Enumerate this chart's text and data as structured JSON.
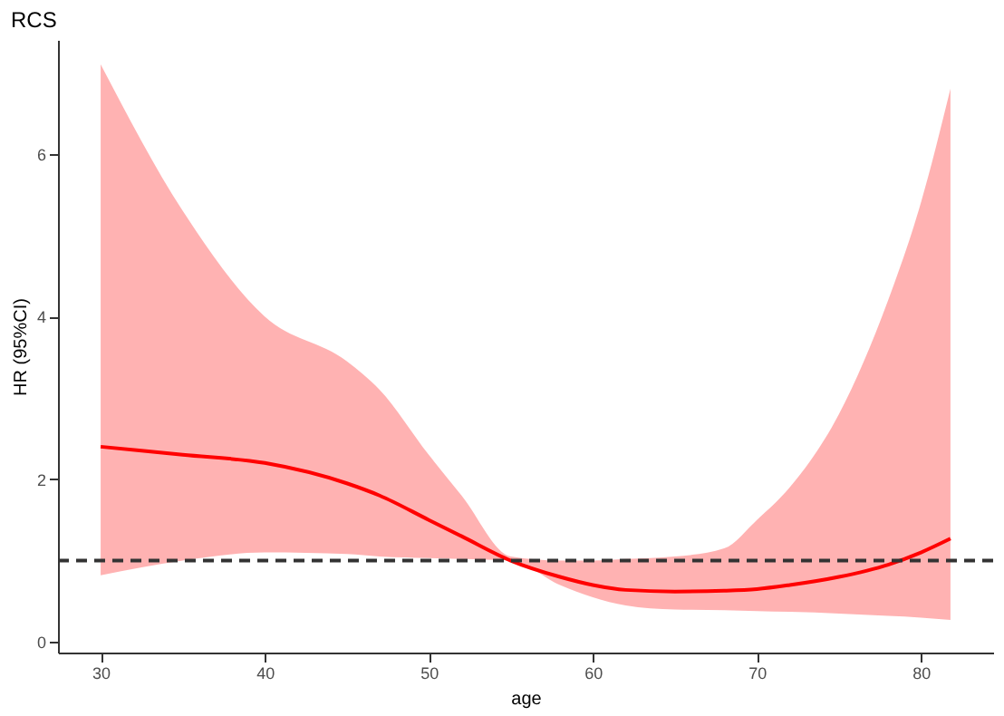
{
  "chart_data": {
    "type": "line",
    "title": "RCS",
    "xlabel": "age",
    "ylabel": "HR (95%CI)",
    "x": [
      30,
      35,
      40,
      45,
      47,
      50,
      52,
      55,
      58,
      60,
      62,
      65,
      68,
      70,
      72,
      75,
      78,
      80,
      81.8
    ],
    "series": [
      {
        "color": "#ff0000",
        "values": [
          2.4,
          2.3,
          2.2,
          1.95,
          1.8,
          1.5,
          1.3,
          1.0,
          0.8,
          0.7,
          0.64,
          0.62,
          0.63,
          0.65,
          0.7,
          0.8,
          0.95,
          1.1,
          1.27
        ],
        "lower": [
          0.82,
          1.0,
          1.1,
          1.08,
          1.05,
          1.03,
          1.02,
          1.0,
          0.7,
          0.55,
          0.45,
          0.4,
          0.39,
          0.38,
          0.37,
          0.35,
          0.32,
          0.3,
          0.27
        ],
        "upper": [
          7.1,
          5.3,
          4.0,
          3.45,
          3.1,
          2.3,
          1.8,
          1.05,
          1.0,
          1.0,
          1.02,
          1.05,
          1.15,
          1.5,
          1.9,
          2.8,
          4.2,
          5.4,
          6.8
        ]
      }
    ],
    "xlim": [
      27.4,
      84.4
    ],
    "xticks": [
      30,
      40,
      50,
      60,
      70,
      80
    ],
    "ylim": [
      -0.13,
      7.4
    ],
    "yticks": [
      0,
      2,
      4,
      6
    ],
    "ref_lines": [
      {
        "axis": "y",
        "value": 1,
        "color": "#333333",
        "line_style": "dashed"
      }
    ],
    "grid": false,
    "line_style": "solid",
    "marker": "none"
  }
}
